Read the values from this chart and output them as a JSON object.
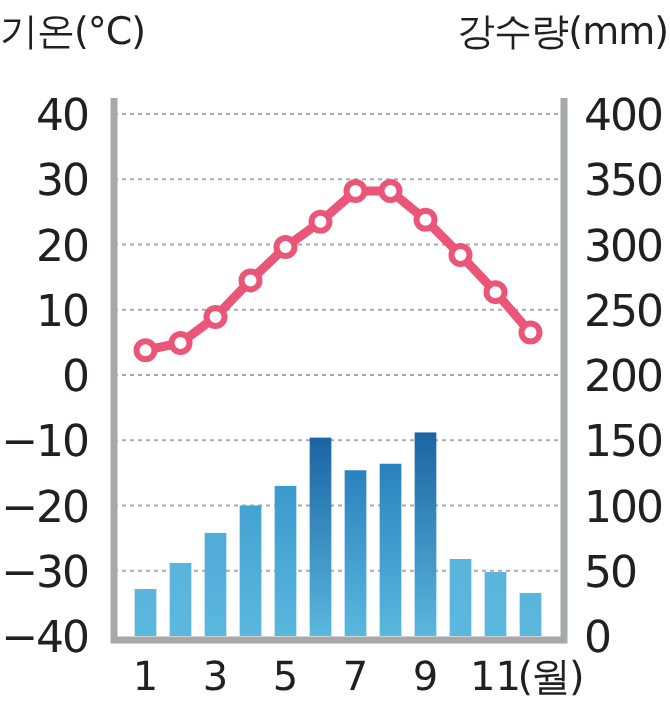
{
  "chart_data": {
    "type": "bar",
    "ylabel": "기온(°C)",
    "y2label": "강수량(mm)",
    "xlabel": "(월)",
    "categories": [
      "1",
      null,
      "3",
      null,
      "5",
      null,
      "7",
      null,
      "9",
      null,
      "11",
      null
    ],
    "series": [
      {
        "type": "line",
        "axis": "y",
        "color": "#eb5577",
        "marker": "circle",
        "line_style": "solid",
        "values": [
          3.8,
          4.9,
          8.9,
          14.5,
          19.6,
          23.5,
          28.2,
          28.2,
          23.8,
          18.4,
          12.7,
          6.5
        ]
      },
      {
        "axis": "y2",
        "colors": [
          "#5ab4dc",
          "#5ab4dc",
          "#50abd8",
          "#44a2d3",
          "#3b99ce",
          "#1a64a3",
          "#2a82bd",
          "#2a82bd",
          "#1a64a3",
          "#5ab4dc",
          "#5ab4dc",
          "#5ab4dc"
        ],
        "values": [
          36,
          56,
          79,
          100,
          115,
          152,
          127,
          132,
          156,
          59,
          49,
          33
        ]
      }
    ],
    "ylim": [
      -40,
      40
    ],
    "yticks": [
      {
        "value": -40,
        "label": "−40"
      },
      {
        "value": -30,
        "label": "−30"
      },
      {
        "value": -20,
        "label": "−20"
      },
      {
        "value": -10,
        "label": "−10"
      },
      0,
      10,
      20,
      30,
      40
    ],
    "y2lim": [
      0,
      400
    ],
    "y2ticks": [
      0,
      50,
      100,
      150,
      200,
      250,
      300,
      350,
      400
    ],
    "grid": "y"
  }
}
